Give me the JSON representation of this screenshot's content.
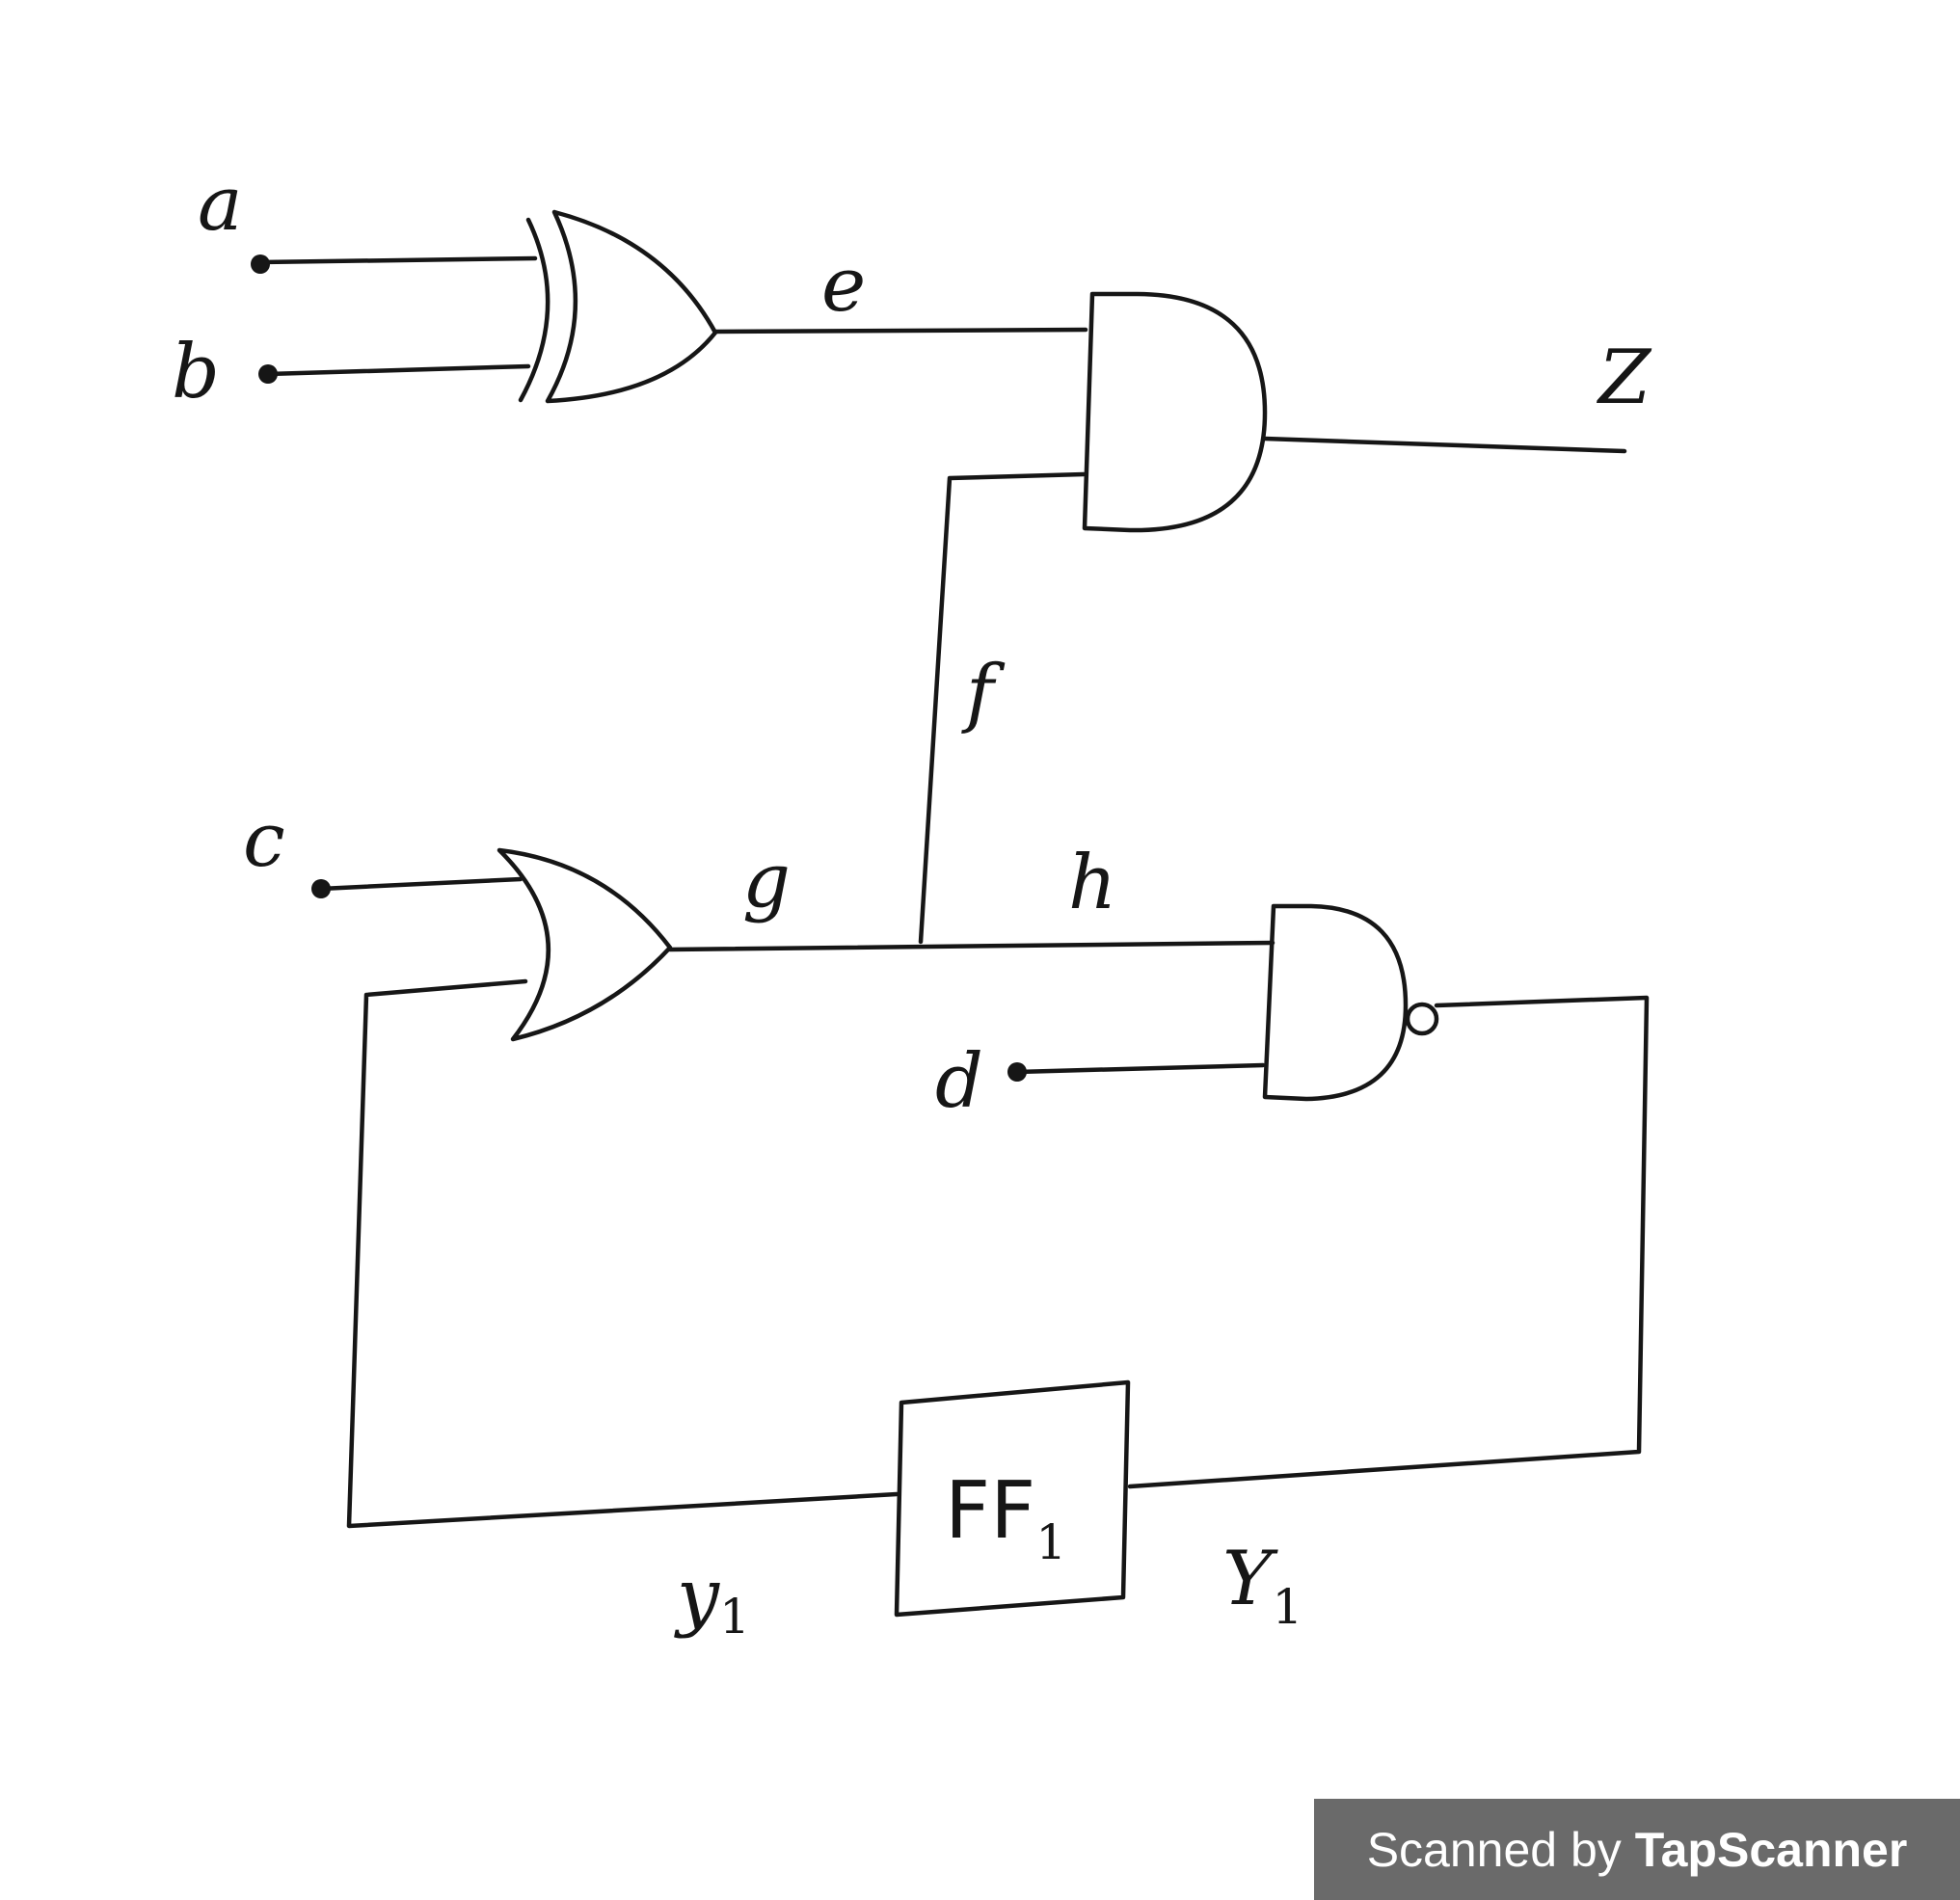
{
  "labels": {
    "a": "a",
    "b": "b",
    "c": "c",
    "d": "d",
    "e": "e",
    "f": "f",
    "g": "g",
    "h": "h",
    "z": "Z",
    "y_lower": "y",
    "y_lower_sub": "1",
    "y_upper": "Y",
    "y_upper_sub": "1",
    "flipflop": "FF",
    "flipflop_sub": "1"
  },
  "watermark": {
    "prefix": "Scanned by",
    "brand": "TapScanner"
  },
  "colors": {
    "ink": "#161616",
    "paper": "#ffffff",
    "watermark_bg": "#6a6a6a"
  }
}
